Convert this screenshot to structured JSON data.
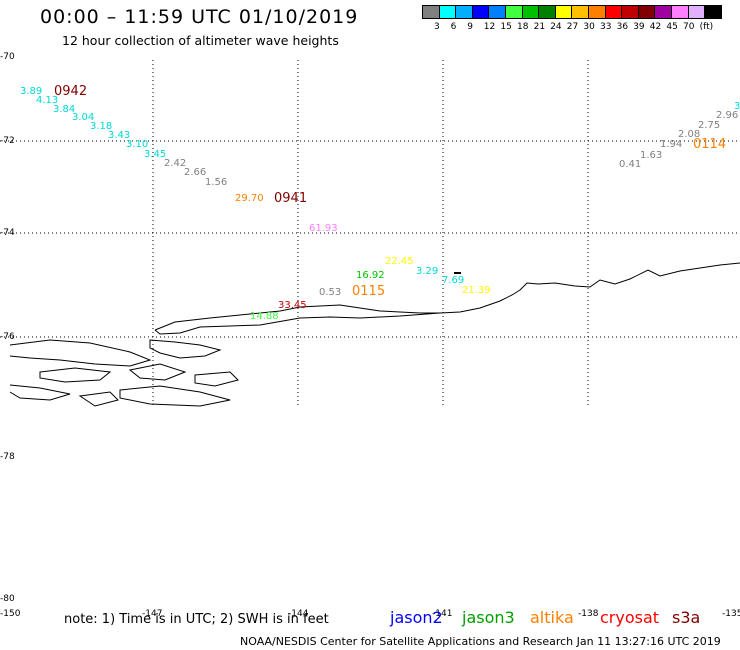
{
  "header": {
    "title": "00:00 – 11:59 UTC 01/10/2019",
    "subtitle": "12 hour collection of altimeter wave heights"
  },
  "legend": {
    "colors": [
      "#808080",
      "#00ffff",
      "#00b0ff",
      "#0000ff",
      "#0080ff",
      "#40ff40",
      "#00c000",
      "#008000",
      "#ffff00",
      "#ffc000",
      "#ff8000",
      "#ff0000",
      "#c00000",
      "#800000",
      "#a000a0",
      "#ff80ff",
      "#e0b0ff",
      "#000000"
    ],
    "labels": [
      "3",
      "6",
      "9",
      "12",
      "15",
      "18",
      "21",
      "24",
      "27",
      "30",
      "33",
      "36",
      "39",
      "42",
      "45",
      "70",
      "(ft)"
    ]
  },
  "map": {
    "lat_labels": [
      "-70",
      "-72",
      "-74",
      "-76",
      "-78",
      "-80"
    ],
    "lon_labels": [
      "-150",
      "-147",
      "-144",
      "-141",
      "-138",
      "-135"
    ],
    "points": [
      {
        "text": "3.89",
        "color": "#00d8d8"
      },
      {
        "text": "4.13",
        "color": "#00d8d8"
      },
      {
        "text": "3.84",
        "color": "#00d8d8"
      },
      {
        "text": "3.04",
        "color": "#00d8d8"
      },
      {
        "text": "3.18",
        "color": "#00d8d8"
      },
      {
        "text": "3.43",
        "color": "#00d8d8"
      },
      {
        "text": "3.10",
        "color": "#00d8d8"
      },
      {
        "text": "3.45",
        "color": "#00d8d8"
      },
      {
        "text": "2.42",
        "color": "#808080"
      },
      {
        "text": "2.66",
        "color": "#808080"
      },
      {
        "text": "1.56",
        "color": "#808080"
      },
      {
        "text": "29.70",
        "color": "#ff8000"
      },
      {
        "text": "61.93",
        "color": "#ff80ff"
      },
      {
        "text": "22.45",
        "color": "#ffff00"
      },
      {
        "text": "16.92",
        "color": "#00c000"
      },
      {
        "text": "3.29",
        "color": "#00d8d8"
      },
      {
        "text": "7.69",
        "color": "#00d8d8"
      },
      {
        "text": "21.39",
        "color": "#ffff00"
      },
      {
        "text": "0.53",
        "color": "#808080"
      },
      {
        "text": "33.45",
        "color": "#c00000"
      },
      {
        "text": "14.88",
        "color": "#40ff40"
      },
      {
        "text": "0.41",
        "color": "#808080"
      },
      {
        "text": "1.63",
        "color": "#808080"
      },
      {
        "text": "1.94",
        "color": "#808080"
      },
      {
        "text": "2.08",
        "color": "#808080"
      },
      {
        "text": "2.75",
        "color": "#808080"
      },
      {
        "text": "2.96",
        "color": "#808080"
      },
      {
        "text": "3",
        "color": "#00d8d8"
      }
    ],
    "times": [
      {
        "text": "0942",
        "color": "#800000"
      },
      {
        "text": "0941",
        "color": "#800000"
      },
      {
        "text": "0115",
        "color": "#ff8000"
      },
      {
        "text": "0114",
        "color": "#ff8000"
      }
    ]
  },
  "footer": {
    "note": "note: 1) Time is in UTC; 2) SWH is in feet",
    "satellites": [
      {
        "name": "jason2",
        "color": "#0000ff"
      },
      {
        "name": "jason3",
        "color": "#00a000"
      },
      {
        "name": "altika",
        "color": "#ff8000"
      },
      {
        "name": "cryosat",
        "color": "#ff0000"
      },
      {
        "name": "s3a",
        "color": "#800000"
      }
    ],
    "credit": "NOAA/NESDIS Center for Satellite Applications and Research    Jan 11 13:27:16 UTC 2019"
  }
}
